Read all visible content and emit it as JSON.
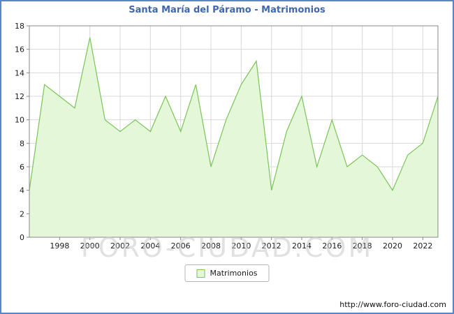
{
  "title": "Santa María del Páramo - Matrimonios",
  "watermark": "FORO-CIUDAD.COM",
  "legend": {
    "label": "Matrimonios"
  },
  "footer": {
    "url": "http://www.foro-ciudad.com"
  },
  "colors": {
    "frame_border": "#5b84c4",
    "title": "#4066ad",
    "line": "#79c457",
    "fill": "#e4f7d9",
    "grid": "#d8d8d8",
    "axis": "#888888",
    "label": "#1a1a1a"
  },
  "chart_data": {
    "type": "area",
    "title": "Santa María del Páramo - Matrimonios",
    "xlabel": "",
    "ylabel": "",
    "ylim": [
      0,
      18
    ],
    "ytick_step": 2,
    "grid": true,
    "legend_position": "bottom",
    "x": [
      1996,
      1997,
      1998,
      1999,
      2000,
      2001,
      2002,
      2003,
      2004,
      2005,
      2006,
      2007,
      2008,
      2009,
      2010,
      2011,
      2012,
      2013,
      2014,
      2015,
      2016,
      2017,
      2018,
      2019,
      2020,
      2021,
      2022,
      2023
    ],
    "xtick_labels": [
      "1998",
      "2000",
      "2002",
      "2004",
      "2006",
      "2008",
      "2010",
      "2012",
      "2014",
      "2016",
      "2018",
      "2020",
      "2022"
    ],
    "series": [
      {
        "name": "Matrimonios",
        "values": [
          4,
          13,
          12,
          11,
          17,
          10,
          9,
          10,
          9,
          12,
          9,
          13,
          6,
          10,
          13,
          15,
          4,
          9,
          12,
          6,
          10,
          6,
          7,
          6,
          4,
          7,
          8,
          12
        ]
      }
    ]
  }
}
